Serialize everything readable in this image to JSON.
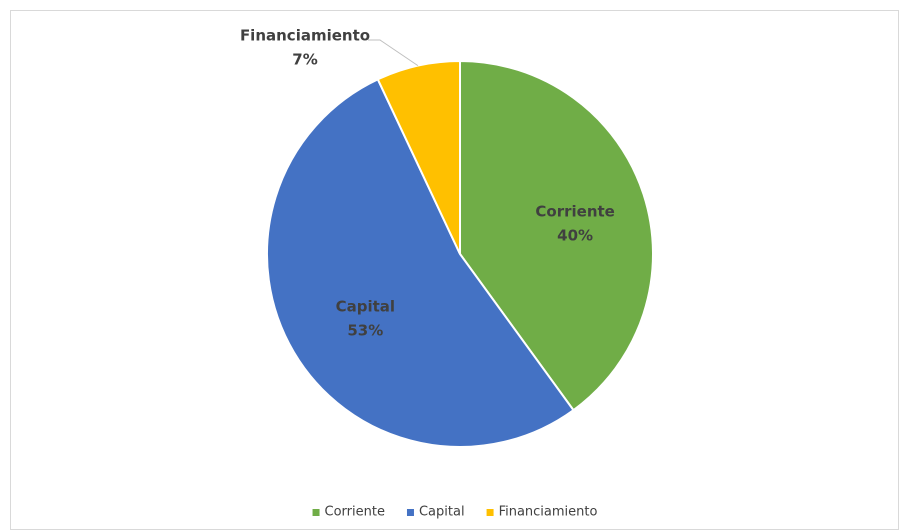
{
  "chart_data": {
    "type": "pie",
    "categories": [
      "Corriente",
      "Capital",
      "Financiamiento"
    ],
    "values": [
      40,
      53,
      7
    ],
    "value_labels": [
      "40%",
      "53%",
      "7%"
    ],
    "colors": [
      "#70ad47",
      "#4472c4",
      "#ffc000"
    ],
    "legend": "bottom"
  }
}
